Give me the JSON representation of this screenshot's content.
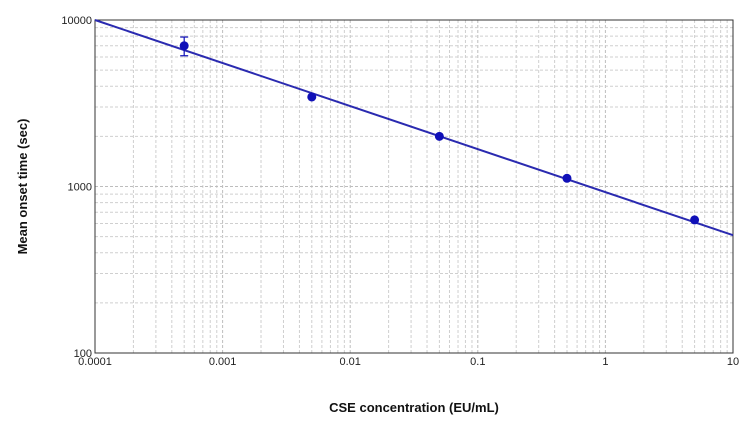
{
  "chart_data": {
    "type": "scatter",
    "title": "",
    "xlabel": "CSE concentration (EU/mL)",
    "ylabel": "Mean onset time (sec)",
    "x_scale": "log",
    "y_scale": "log",
    "xlim": [
      0.0001,
      10
    ],
    "ylim": [
      100,
      10000
    ],
    "x_ticks": [
      "0.0001",
      "0.001",
      "0.01",
      "0.1",
      "1",
      "10"
    ],
    "y_ticks": [
      "100",
      "1000",
      "10000"
    ],
    "grid": true,
    "legend": "none",
    "points": [
      {
        "x": 0.0005,
        "y": 7000,
        "y_err_low": 6100,
        "y_err_high": 7900
      },
      {
        "x": 0.005,
        "y": 3450
      },
      {
        "x": 0.05,
        "y": 2000
      },
      {
        "x": 0.5,
        "y": 1120
      },
      {
        "x": 5,
        "y": 630
      }
    ],
    "fit_line": {
      "x": [
        0.0001,
        10
      ],
      "y": [
        10000,
        510
      ]
    },
    "colors": {
      "points": "#1010b8",
      "line": "#2a2ab0",
      "grid": "#cfcfcf",
      "axis": "#333333"
    }
  }
}
